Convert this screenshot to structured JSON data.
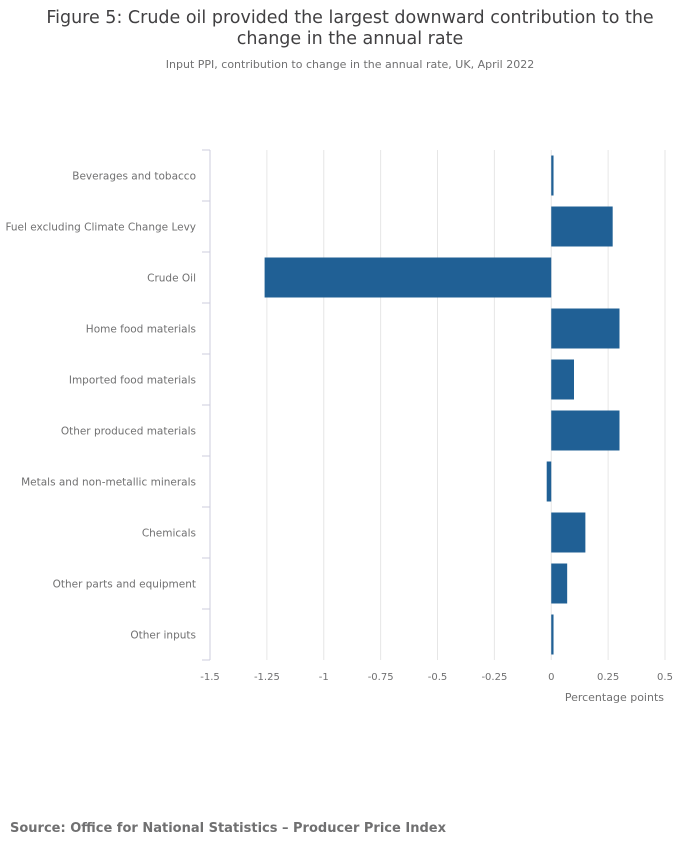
{
  "title": "Figure 5: Crude oil provided the largest downward contribution to the change in the annual rate",
  "subtitle": "Input PPI, contribution to change in the annual rate, UK, April 2022",
  "source": "Source: Office for National Statistics – Producer Price Index",
  "colors": {
    "bar": "#206095",
    "grid": "#e6e6e6",
    "axis": "#ccccdd",
    "text": "#707071"
  },
  "chart_data": {
    "type": "bar",
    "orientation": "horizontal",
    "categories": [
      "Beverages and tobacco",
      "Fuel excluding Climate Change Levy",
      "Crude Oil",
      "Home food materials",
      "Imported food materials",
      "Other produced materials",
      "Metals and non-metallic minerals",
      "Chemicals",
      "Other parts and equipment",
      "Other inputs"
    ],
    "values": [
      0.01,
      0.27,
      -1.26,
      0.3,
      0.1,
      0.3,
      -0.02,
      0.15,
      0.07,
      0.01
    ],
    "xlabel": "Percentage points",
    "ylabel": "",
    "xlim": [
      -1.5,
      0.5
    ],
    "xticks": [
      -1.5,
      -1.25,
      -1,
      -0.75,
      -0.5,
      -0.25,
      0,
      0.25,
      0.5
    ],
    "xtick_labels": [
      "-1.5",
      "-1.25",
      "-1",
      "-0.75",
      "-0.5",
      "-0.25",
      "0",
      "0.25",
      "0.5"
    ],
    "grid": true,
    "legend": "none"
  }
}
